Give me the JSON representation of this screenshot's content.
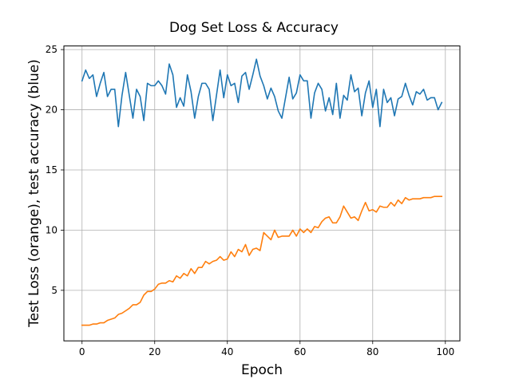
{
  "chart_data": {
    "type": "line",
    "title": "Dog Set Loss & Accuracy",
    "xlabel": "Epoch",
    "ylabel": "Test Loss (orange), test accuracy (blue)",
    "xlim": [
      -5,
      104
    ],
    "ylim": [
      0.8,
      25.3
    ],
    "xticks": [
      0,
      20,
      40,
      60,
      80,
      100
    ],
    "yticks": [
      5,
      10,
      15,
      20,
      25
    ],
    "grid": true,
    "x": [
      0,
      1,
      2,
      3,
      4,
      5,
      6,
      7,
      8,
      9,
      10,
      11,
      12,
      13,
      14,
      15,
      16,
      17,
      18,
      19,
      20,
      21,
      22,
      23,
      24,
      25,
      26,
      27,
      28,
      29,
      30,
      31,
      32,
      33,
      34,
      35,
      36,
      37,
      38,
      39,
      40,
      41,
      42,
      43,
      44,
      45,
      46,
      47,
      48,
      49,
      50,
      51,
      52,
      53,
      54,
      55,
      56,
      57,
      58,
      59,
      60,
      61,
      62,
      63,
      64,
      65,
      66,
      67,
      68,
      69,
      70,
      71,
      72,
      73,
      74,
      75,
      76,
      77,
      78,
      79,
      80,
      81,
      82,
      83,
      84,
      85,
      86,
      87,
      88,
      89,
      90,
      91,
      92,
      93,
      94,
      95,
      96,
      97,
      98,
      99
    ],
    "series": [
      {
        "color": "#1f77b4",
        "values": [
          22.4,
          23.3,
          22.6,
          22.9,
          21.1,
          22.2,
          23.1,
          21.1,
          21.7,
          21.7,
          18.6,
          21.2,
          23.1,
          21.2,
          19.3,
          21.7,
          21.1,
          19.1,
          22.2,
          22.0,
          22.0,
          22.4,
          22.0,
          21.3,
          23.8,
          22.9,
          20.2,
          21.0,
          20.3,
          22.9,
          21.5,
          19.3,
          21.1,
          22.2,
          22.2,
          21.7,
          19.1,
          21.2,
          23.3,
          21.0,
          22.9,
          22.0,
          22.2,
          20.6,
          22.8,
          23.1,
          21.7,
          22.9,
          24.2,
          22.8,
          22.0,
          20.9,
          21.8,
          21.1,
          19.9,
          19.3,
          21.0,
          22.7,
          20.9,
          21.4,
          22.9,
          22.4,
          22.4,
          19.3,
          21.4,
          22.2,
          21.7,
          19.9,
          21.0,
          19.6,
          22.2,
          19.3,
          21.2,
          20.8,
          22.9,
          21.5,
          21.8,
          19.5,
          21.4,
          22.4,
          20.2,
          21.7,
          18.6,
          21.7,
          20.6,
          21.0,
          19.5,
          20.9,
          21.1,
          22.2,
          21.2,
          20.4,
          21.5,
          21.3,
          21.7,
          20.8,
          21.0,
          21.0,
          20.0,
          20.6
        ]
      },
      {
        "color": "#ff7f0e",
        "values": [
          2.1,
          2.1,
          2.1,
          2.2,
          2.2,
          2.3,
          2.3,
          2.5,
          2.6,
          2.7,
          3.0,
          3.1,
          3.3,
          3.5,
          3.8,
          3.8,
          4.0,
          4.6,
          4.9,
          4.9,
          5.1,
          5.5,
          5.6,
          5.6,
          5.8,
          5.7,
          6.2,
          6.0,
          6.4,
          6.2,
          6.8,
          6.4,
          6.9,
          6.9,
          7.4,
          7.2,
          7.4,
          7.5,
          7.8,
          7.5,
          7.6,
          8.2,
          7.8,
          8.4,
          8.2,
          8.8,
          7.9,
          8.4,
          8.5,
          8.3,
          9.8,
          9.5,
          9.2,
          10.0,
          9.4,
          9.5,
          9.5,
          9.5,
          10.0,
          9.5,
          10.1,
          9.8,
          10.1,
          9.8,
          10.3,
          10.2,
          10.7,
          11.0,
          11.1,
          10.6,
          10.6,
          11.1,
          12.0,
          11.5,
          11.0,
          11.1,
          10.8,
          11.6,
          12.3,
          11.6,
          11.7,
          11.5,
          12.0,
          11.9,
          11.9,
          12.3,
          12.0,
          12.5,
          12.2,
          12.7,
          12.5,
          12.6,
          12.6,
          12.6,
          12.7,
          12.7,
          12.7,
          12.8,
          12.8,
          12.8
        ]
      }
    ]
  }
}
